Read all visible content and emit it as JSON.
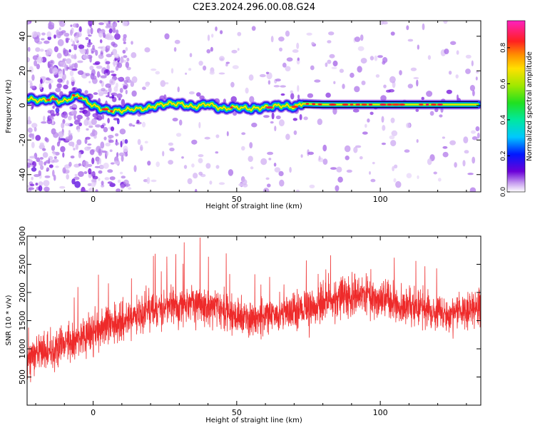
{
  "figure": {
    "title": "C2E3.2024.296.00.08.G24"
  },
  "chart_data": [
    {
      "type": "heatmap",
      "title": "C2E3.2024.296.00.08.G24",
      "xlabel": "Height of straight line (km)",
      "ylabel": "Frequency (Hz)",
      "xlim": [
        -23,
        135
      ],
      "ylim": [
        -50,
        49
      ],
      "xticks": [
        0,
        50,
        100
      ],
      "yticks": [
        -40,
        -20,
        0,
        20,
        40
      ],
      "grid": false,
      "colorbar": {
        "label": "Normalized spectral amplitude",
        "range": [
          0,
          0.95
        ],
        "ticks": [
          0,
          0.2,
          0.4,
          0.6,
          0.8
        ],
        "colormap": "rainbow"
      },
      "ridge": {
        "x": [
          -23,
          -20,
          -17,
          -14,
          -11,
          -8,
          -5,
          -3,
          0,
          3,
          6,
          10,
          14,
          18,
          22,
          26,
          30,
          35,
          40,
          45,
          50,
          55,
          60,
          65,
          70,
          73,
          80,
          90,
          100,
          110,
          120,
          134
        ],
        "y": [
          4,
          3,
          3,
          4,
          2,
          4,
          6,
          3,
          0,
          -2,
          -3,
          -3,
          -2,
          -2,
          0,
          1,
          1,
          -1,
          1,
          -2,
          -1,
          -2,
          -1,
          0,
          -1,
          1,
          0.5,
          0.5,
          0.5,
          0.5,
          0.5,
          0.5
        ]
      }
    },
    {
      "type": "line",
      "xlabel": "Height of straight line (km)",
      "ylabel": "SNR (10 * v/v)",
      "xlim": [
        -23,
        135
      ],
      "ylim": [
        0,
        3000
      ],
      "xticks": [
        0,
        50,
        100
      ],
      "yticks": [
        500,
        1000,
        1500,
        2000,
        2500,
        3000
      ],
      "grid": false,
      "series": [
        {
          "color": "#ee2a2a",
          "trend": {
            "x": [
              -23,
              -15,
              -5,
              5,
              15,
              25,
              35,
              45,
              55,
              65,
              75,
              85,
              95,
              105,
              115,
              125,
              135
            ],
            "y": [
              800,
              1000,
              1200,
              1400,
              1550,
              1750,
              1800,
              1700,
              1500,
              1600,
              1750,
              1900,
              1950,
              1800,
              1700,
              1600,
              1750
            ]
          },
          "spread": 500,
          "max": 3000,
          "min": 100
        }
      ]
    }
  ]
}
